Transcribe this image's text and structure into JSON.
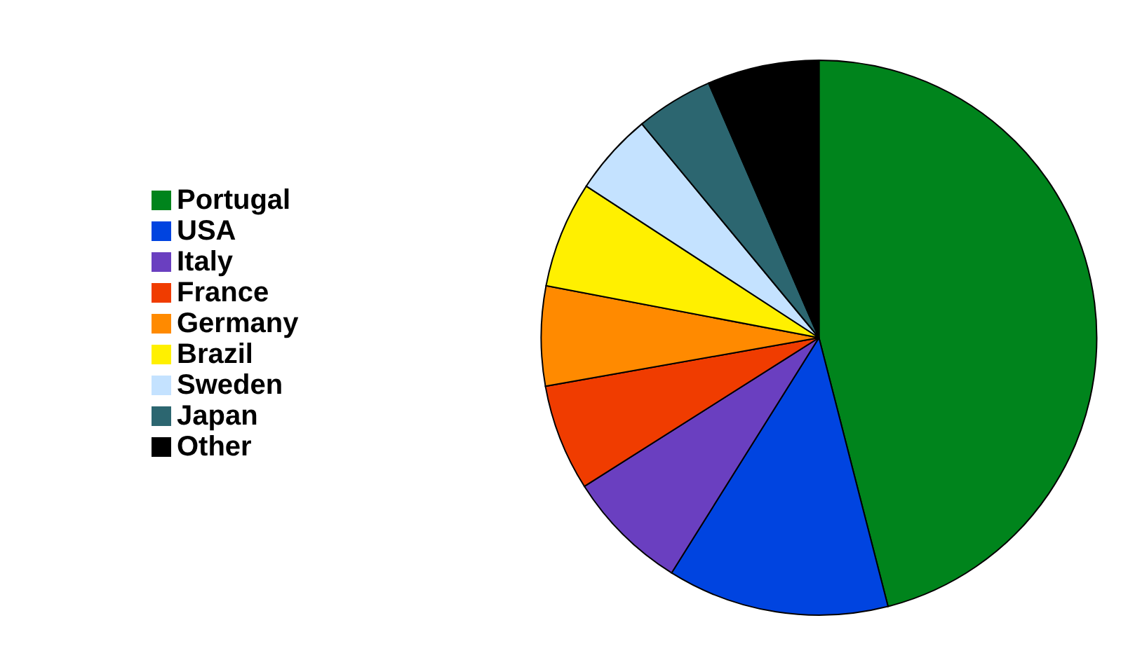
{
  "chart_data": {
    "type": "pie",
    "categories": [
      "Portugal",
      "USA",
      "Italy",
      "France",
      "Germany",
      "Brazil",
      "Sweden",
      "Japan",
      "Other"
    ],
    "values": [
      46,
      12.9,
      7.1,
      6.2,
      5.8,
      6.2,
      4.8,
      4.5,
      6.5
    ],
    "colors": [
      "#00841c",
      "#0044e0",
      "#6a3fc0",
      "#f03c00",
      "#ff8a00",
      "#fff000",
      "#c4e2ff",
      "#2c6670",
      "#000000"
    ],
    "legend": "left"
  }
}
